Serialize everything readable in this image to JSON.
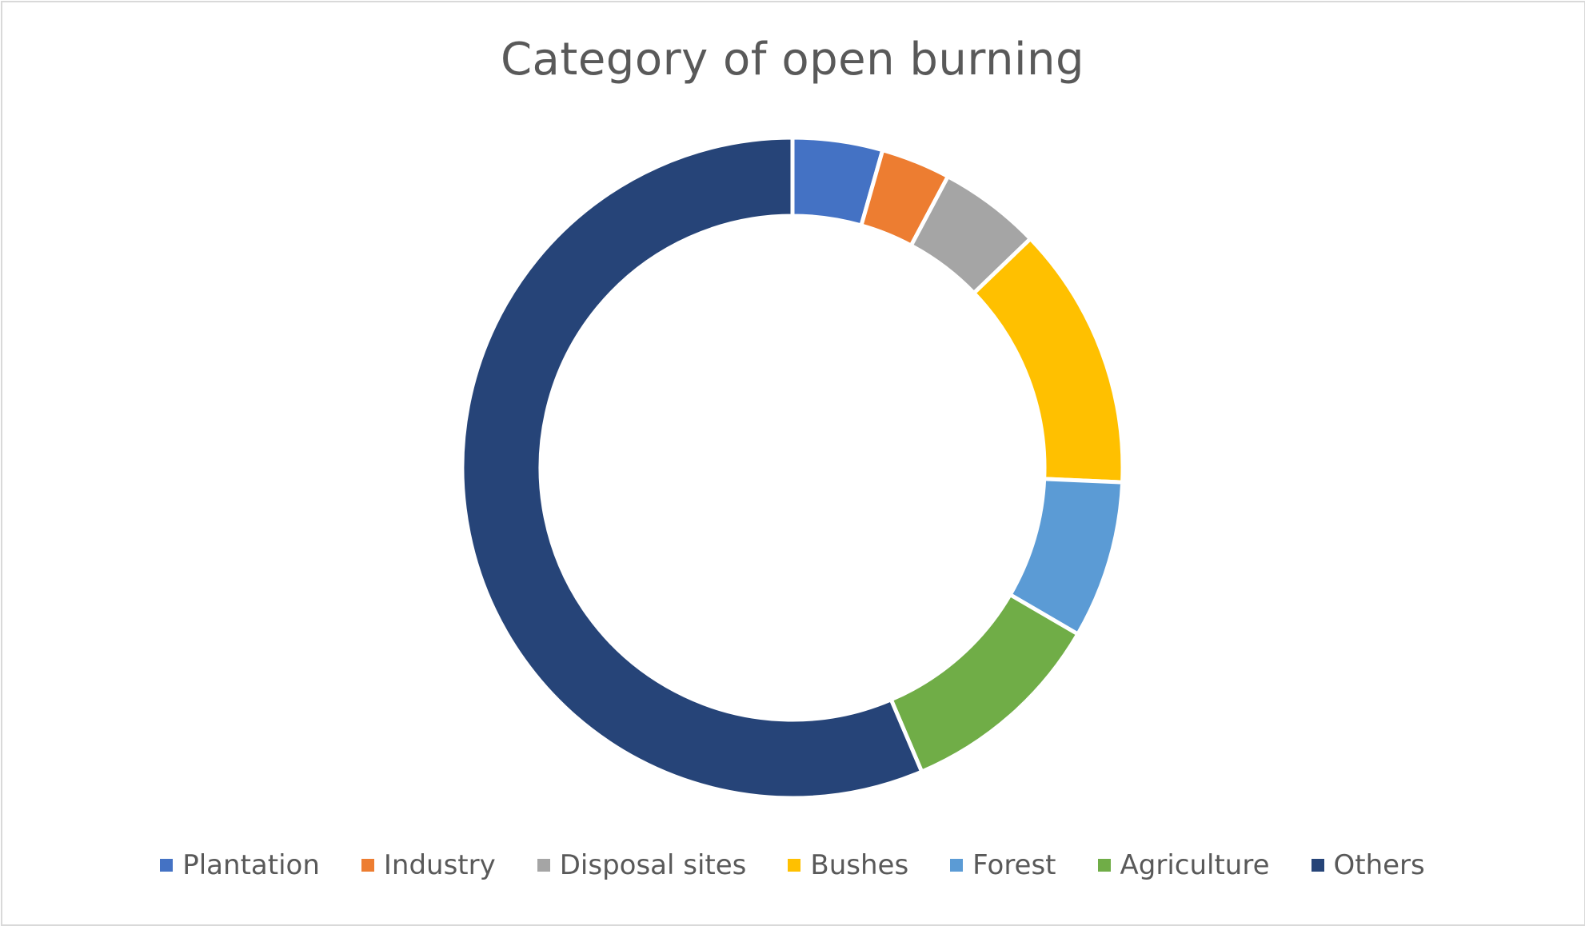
{
  "chart_data": {
    "type": "pie",
    "variant": "doughnut",
    "title": "Category of open burning",
    "categories": [
      "Plantation",
      "Industry",
      "Disposal sites",
      "Bushes",
      "Forest",
      "Agriculture",
      "Others"
    ],
    "values": [
      4.4,
      3.4,
      5.0,
      12.9,
      7.7,
      10.2,
      56.4
    ],
    "colors": [
      "#4472C4",
      "#ED7D31",
      "#A5A5A5",
      "#FFC000",
      "#5B9BD5",
      "#70AD47",
      "#264478"
    ],
    "legend": "bottom",
    "start_angle": "12 o'clock, clockwise"
  }
}
